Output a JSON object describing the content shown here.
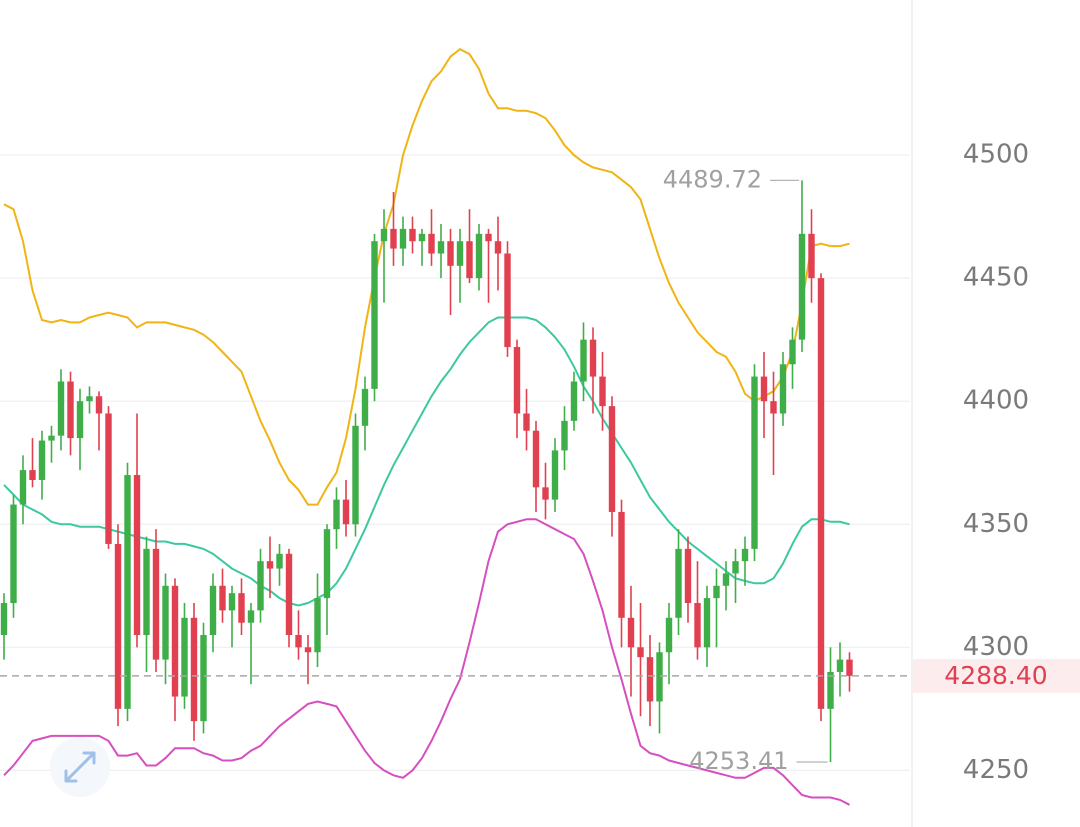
{
  "chart_data": {
    "type": "candlestick",
    "ylim": [
      4227,
      4563
    ],
    "yticks": [
      4250,
      4300,
      4350,
      4400,
      4450,
      4500
    ],
    "grid": true,
    "up_color": "#3fae49",
    "down_color": "#e0404f",
    "ohlc": [
      [
        4305,
        4322,
        4295,
        4318
      ],
      [
        4318,
        4362,
        4312,
        4358
      ],
      [
        4358,
        4378,
        4350,
        4372
      ],
      [
        4372,
        4385,
        4365,
        4368
      ],
      [
        4368,
        4388,
        4360,
        4384
      ],
      [
        4384,
        4390,
        4375,
        4386
      ],
      [
        4386,
        4413,
        4380,
        4408
      ],
      [
        4408,
        4412,
        4378,
        4385
      ],
      [
        4385,
        4405,
        4372,
        4400
      ],
      [
        4400,
        4406,
        4395,
        4402
      ],
      [
        4402,
        4404,
        4380,
        4395
      ],
      [
        4395,
        4398,
        4340,
        4342
      ],
      [
        4342,
        4350,
        4268,
        4275
      ],
      [
        4275,
        4375,
        4270,
        4370
      ],
      [
        4370,
        4395,
        4300,
        4305
      ],
      [
        4305,
        4345,
        4290,
        4340
      ],
      [
        4340,
        4348,
        4290,
        4295
      ],
      [
        4295,
        4330,
        4285,
        4325
      ],
      [
        4325,
        4328,
        4270,
        4280
      ],
      [
        4280,
        4318,
        4275,
        4312
      ],
      [
        4312,
        4318,
        4262,
        4270
      ],
      [
        4270,
        4310,
        4265,
        4305
      ],
      [
        4305,
        4330,
        4298,
        4325
      ],
      [
        4325,
        4332,
        4310,
        4315
      ],
      [
        4315,
        4325,
        4300,
        4322
      ],
      [
        4322,
        4328,
        4305,
        4310
      ],
      [
        4310,
        4318,
        4285,
        4315
      ],
      [
        4315,
        4340,
        4310,
        4335
      ],
      [
        4335,
        4345,
        4320,
        4332
      ],
      [
        4332,
        4342,
        4325,
        4338
      ],
      [
        4338,
        4340,
        4300,
        4305
      ],
      [
        4305,
        4315,
        4295,
        4300
      ],
      [
        4300,
        4305,
        4285,
        4298
      ],
      [
        4298,
        4330,
        4292,
        4320
      ],
      [
        4320,
        4350,
        4305,
        4348
      ],
      [
        4348,
        4365,
        4340,
        4360
      ],
      [
        4360,
        4368,
        4345,
        4350
      ],
      [
        4350,
        4395,
        4345,
        4390
      ],
      [
        4390,
        4410,
        4380,
        4405
      ],
      [
        4405,
        4468,
        4400,
        4465
      ],
      [
        4465,
        4478,
        4440,
        4470
      ],
      [
        4470,
        4485,
        4455,
        4462
      ],
      [
        4462,
        4475,
        4455,
        4470
      ],
      [
        4470,
        4475,
        4460,
        4465
      ],
      [
        4465,
        4470,
        4455,
        4468
      ],
      [
        4468,
        4478,
        4455,
        4460
      ],
      [
        4460,
        4472,
        4450,
        4465
      ],
      [
        4465,
        4470,
        4435,
        4455
      ],
      [
        4455,
        4470,
        4440,
        4465
      ],
      [
        4465,
        4478,
        4448,
        4450
      ],
      [
        4450,
        4472,
        4445,
        4468
      ],
      [
        4468,
        4470,
        4440,
        4465
      ],
      [
        4465,
        4475,
        4445,
        4460
      ],
      [
        4460,
        4465,
        4418,
        4422
      ],
      [
        4422,
        4425,
        4385,
        4395
      ],
      [
        4395,
        4405,
        4380,
        4388
      ],
      [
        4388,
        4392,
        4355,
        4365
      ],
      [
        4365,
        4375,
        4352,
        4360
      ],
      [
        4360,
        4385,
        4355,
        4380
      ],
      [
        4380,
        4398,
        4372,
        4392
      ],
      [
        4392,
        4412,
        4388,
        4408
      ],
      [
        4408,
        4432,
        4400,
        4425
      ],
      [
        4425,
        4430,
        4395,
        4410
      ],
      [
        4410,
        4420,
        4388,
        4398
      ],
      [
        4398,
        4402,
        4345,
        4355
      ],
      [
        4355,
        4360,
        4300,
        4312
      ],
      [
        4312,
        4325,
        4280,
        4300
      ],
      [
        4300,
        4318,
        4272,
        4296
      ],
      [
        4296,
        4305,
        4268,
        4278
      ],
      [
        4278,
        4302,
        4265,
        4298
      ],
      [
        4298,
        4318,
        4285,
        4312
      ],
      [
        4312,
        4348,
        4305,
        4340
      ],
      [
        4340,
        4345,
        4310,
        4318
      ],
      [
        4318,
        4335,
        4295,
        4300
      ],
      [
        4300,
        4325,
        4292,
        4320
      ],
      [
        4320,
        4332,
        4300,
        4325
      ],
      [
        4325,
        4335,
        4315,
        4330
      ],
      [
        4330,
        4340,
        4318,
        4335
      ],
      [
        4335,
        4345,
        4325,
        4340
      ],
      [
        4340,
        4415,
        4335,
        4410
      ],
      [
        4410,
        4420,
        4385,
        4400
      ],
      [
        4400,
        4412,
        4370,
        4395
      ],
      [
        4395,
        4420,
        4390,
        4415
      ],
      [
        4415,
        4430,
        4405,
        4425
      ],
      [
        4425,
        4489.72,
        4420,
        4468
      ],
      [
        4468,
        4478,
        4440,
        4450
      ],
      [
        4450,
        4452,
        4270,
        4275
      ],
      [
        4275,
        4300,
        4253.41,
        4290
      ],
      [
        4290,
        4302,
        4280,
        4295
      ],
      [
        4295,
        4298,
        4282,
        4288.4
      ]
    ],
    "series": [
      {
        "color": "#f0b414",
        "values": [
          4480,
          4478,
          4465,
          4445,
          4433,
          4432,
          4433,
          4432,
          4432,
          4434,
          4435,
          4436,
          4435,
          4434,
          4430,
          4432,
          4432,
          4432,
          4431,
          4430,
          4429,
          4427,
          4424,
          4420,
          4416,
          4412,
          4402,
          4392,
          4384,
          4375,
          4368,
          4364,
          4358,
          4358,
          4365,
          4371,
          4385,
          4405,
          4430,
          4450,
          4468,
          4480,
          4500,
          4512,
          4522,
          4530,
          4534,
          4540,
          4543,
          4541,
          4535,
          4525,
          4519,
          4519,
          4518,
          4518,
          4517,
          4515,
          4510,
          4504,
          4500,
          4497,
          4495,
          4494,
          4493,
          4490,
          4487,
          4482,
          4470,
          4458,
          4448,
          4440,
          4434,
          4428,
          4424,
          4420,
          4418,
          4412,
          4403,
          4400,
          4402,
          4404,
          4410,
          4420,
          4440,
          4463,
          4464,
          4463,
          4463,
          4464
        ]
      },
      {
        "color": "#3cc8a0",
        "values": [
          4366,
          4362,
          4358,
          4356,
          4354,
          4351,
          4350,
          4350,
          4349,
          4349,
          4349,
          4348,
          4347,
          4346,
          4345,
          4344,
          4343,
          4343,
          4342,
          4342,
          4341,
          4340,
          4338,
          4335,
          4332,
          4330,
          4328,
          4325,
          4323,
          4320,
          4318,
          4317,
          4318,
          4320,
          4322,
          4326,
          4332,
          4340,
          4348,
          4357,
          4366,
          4374,
          4381,
          4388,
          4395,
          4402,
          4408,
          4413,
          4419,
          4424,
          4428,
          4432,
          4434,
          4434,
          4434,
          4434,
          4433,
          4430,
          4426,
          4421,
          4414,
          4406,
          4400,
          4393,
          4387,
          4381,
          4375,
          4368,
          4361,
          4356,
          4351,
          4347,
          4343,
          4340,
          4337,
          4334,
          4331,
          4328,
          4327,
          4326,
          4326,
          4328,
          4334,
          4342,
          4349,
          4352,
          4352,
          4351,
          4351,
          4350
        ]
      },
      {
        "color": "#d64fc0",
        "values": [
          4248,
          4252,
          4257,
          4262,
          4263,
          4264,
          4264,
          4264,
          4264,
          4264,
          4264,
          4262,
          4256,
          4256,
          4257,
          4252,
          4252,
          4255,
          4259,
          4259,
          4259,
          4257,
          4256,
          4254,
          4254,
          4255,
          4258,
          4260,
          4264,
          4268,
          4271,
          4274,
          4277,
          4278,
          4277,
          4276,
          4270,
          4264,
          4258,
          4253,
          4250,
          4248,
          4247,
          4250,
          4255,
          4262,
          4270,
          4279,
          4287,
          4302,
          4318,
          4335,
          4347,
          4350,
          4351,
          4352,
          4352,
          4350,
          4348,
          4346,
          4344,
          4338,
          4327,
          4315,
          4300,
          4287,
          4273,
          4260,
          4257,
          4256,
          4254,
          4253,
          4252,
          4251,
          4250,
          4249,
          4248,
          4247,
          4247,
          4249,
          4251,
          4251,
          4248,
          4244,
          4240,
          4239,
          4239,
          4239,
          4238,
          4236
        ]
      }
    ],
    "last_price": {
      "value": 4288.4,
      "label": "4288.40"
    }
  }
}
